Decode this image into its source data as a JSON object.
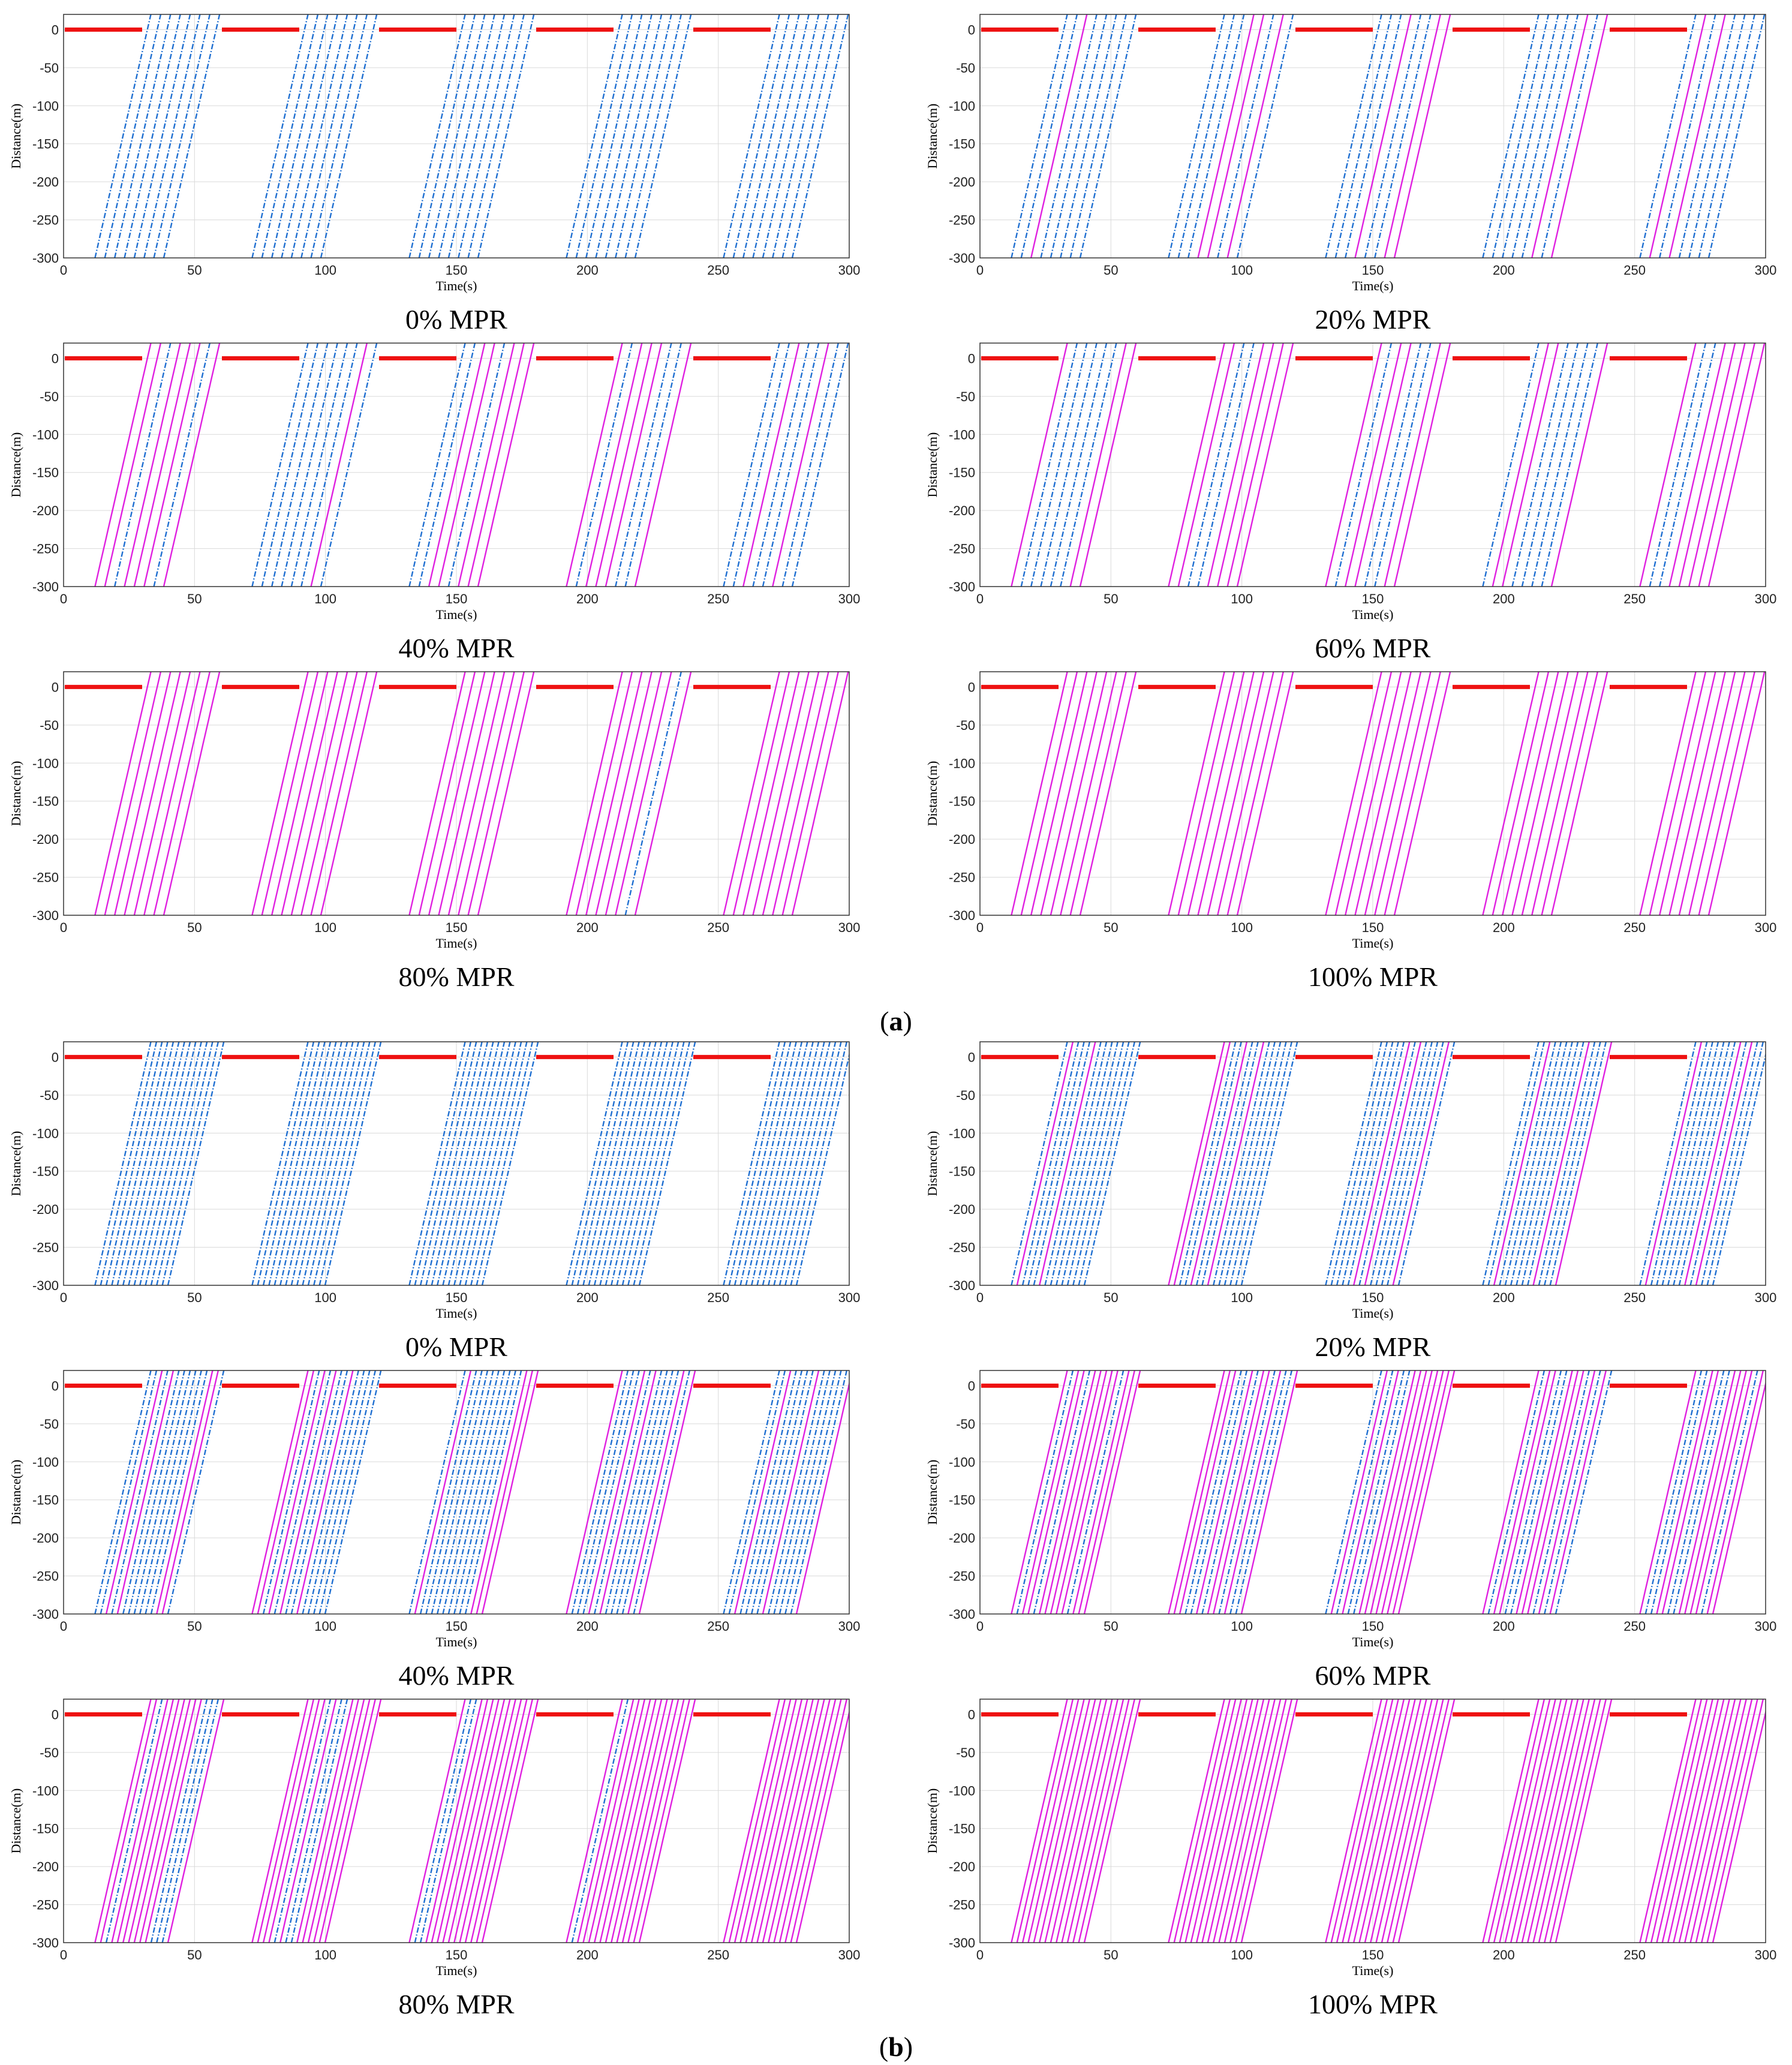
{
  "figure": {
    "groups": [
      {
        "label_open": "(",
        "label_letter": "a",
        "label_close": ")"
      },
      {
        "label_open": "(",
        "label_letter": "b",
        "label_close": ")"
      }
    ],
    "series_styles": {
      "signal_red": "#ee1111",
      "hdv_blue": "#1f6fd1",
      "cav_magenta": "#e020e0",
      "grid": "#d9d9d9"
    }
  },
  "chart_data": [
    {
      "group": "a",
      "type": "line",
      "title": "0% MPR",
      "xlabel": "Time(s)",
      "ylabel": "Distance(m)",
      "xlim": [
        0,
        300
      ],
      "ylim": [
        -300,
        20
      ],
      "xticks": [
        "0",
        "50",
        "100",
        "150",
        "200",
        "250",
        "300"
      ],
      "yticks": [
        "0",
        "-50",
        "-100",
        "-150",
        "-200",
        "-250",
        "-300"
      ],
      "red_phases": [
        [
          0,
          30
        ],
        [
          60,
          90
        ],
        [
          120,
          150
        ],
        [
          180,
          210
        ],
        [
          240,
          270
        ]
      ],
      "mpr": 0,
      "vehicles_per_cycle": 8
    },
    {
      "group": "a",
      "type": "line",
      "title": "20% MPR",
      "xlabel": "Time(s)",
      "ylabel": "Distance(m)",
      "xlim": [
        0,
        300
      ],
      "ylim": [
        -300,
        20
      ],
      "xticks": [
        "0",
        "50",
        "100",
        "150",
        "200",
        "250",
        "300"
      ],
      "yticks": [
        "0",
        "-50",
        "-100",
        "-150",
        "-200",
        "-250",
        "-300"
      ],
      "red_phases": [
        [
          0,
          30
        ],
        [
          60,
          90
        ],
        [
          120,
          150
        ],
        [
          180,
          210
        ],
        [
          240,
          270
        ]
      ],
      "mpr": 20,
      "vehicles_per_cycle": 8
    },
    {
      "group": "a",
      "type": "line",
      "title": "40% MPR",
      "xlabel": "Time(s)",
      "ylabel": "Distance(m)",
      "xlim": [
        0,
        300
      ],
      "ylim": [
        -300,
        20
      ],
      "xticks": [
        "0",
        "50",
        "100",
        "150",
        "200",
        "250",
        "300"
      ],
      "yticks": [
        "0",
        "-50",
        "-100",
        "-150",
        "-200",
        "-250",
        "-300"
      ],
      "red_phases": [
        [
          0,
          30
        ],
        [
          60,
          90
        ],
        [
          120,
          150
        ],
        [
          180,
          210
        ],
        [
          240,
          270
        ]
      ],
      "mpr": 40,
      "vehicles_per_cycle": 8
    },
    {
      "group": "a",
      "type": "line",
      "title": "60% MPR",
      "xlabel": "Time(s)",
      "ylabel": "Distance(m)",
      "xlim": [
        0,
        300
      ],
      "ylim": [
        -300,
        20
      ],
      "xticks": [
        "0",
        "50",
        "100",
        "150",
        "200",
        "250",
        "300"
      ],
      "yticks": [
        "0",
        "-50",
        "-100",
        "-150",
        "-200",
        "-250",
        "-300"
      ],
      "red_phases": [
        [
          0,
          30
        ],
        [
          60,
          90
        ],
        [
          120,
          150
        ],
        [
          180,
          210
        ],
        [
          240,
          270
        ]
      ],
      "mpr": 60,
      "vehicles_per_cycle": 8
    },
    {
      "group": "a",
      "type": "line",
      "title": "80% MPR",
      "xlabel": "Time(s)",
      "ylabel": "Distance(m)",
      "xlim": [
        0,
        300
      ],
      "ylim": [
        -300,
        20
      ],
      "xticks": [
        "0",
        "50",
        "100",
        "150",
        "200",
        "250",
        "300"
      ],
      "yticks": [
        "0",
        "-50",
        "-100",
        "-150",
        "-200",
        "-250",
        "-300"
      ],
      "red_phases": [
        [
          0,
          30
        ],
        [
          60,
          90
        ],
        [
          120,
          150
        ],
        [
          180,
          210
        ],
        [
          240,
          270
        ]
      ],
      "mpr": 80,
      "vehicles_per_cycle": 8
    },
    {
      "group": "a",
      "type": "line",
      "title": "100% MPR",
      "xlabel": "Time(s)",
      "ylabel": "Distance(m)",
      "xlim": [
        0,
        300
      ],
      "ylim": [
        -300,
        20
      ],
      "xticks": [
        "0",
        "50",
        "100",
        "150",
        "200",
        "250",
        "300"
      ],
      "yticks": [
        "0",
        "-50",
        "-100",
        "-150",
        "-200",
        "-250",
        "-300"
      ],
      "red_phases": [
        [
          0,
          30
        ],
        [
          60,
          90
        ],
        [
          120,
          150
        ],
        [
          180,
          210
        ],
        [
          240,
          270
        ]
      ],
      "mpr": 100,
      "vehicles_per_cycle": 8
    },
    {
      "group": "b",
      "type": "line",
      "title": "0% MPR",
      "xlabel": "Time(s)",
      "ylabel": "Distance(m)",
      "xlim": [
        0,
        300
      ],
      "ylim": [
        -300,
        20
      ],
      "xticks": [
        "0",
        "50",
        "100",
        "150",
        "200",
        "250",
        "300"
      ],
      "yticks": [
        "0",
        "-50",
        "-100",
        "-150",
        "-200",
        "-250",
        "-300"
      ],
      "red_phases": [
        [
          0,
          30
        ],
        [
          60,
          90
        ],
        [
          120,
          150
        ],
        [
          180,
          210
        ],
        [
          240,
          270
        ]
      ],
      "mpr": 0,
      "vehicles_per_cycle": 14
    },
    {
      "group": "b",
      "type": "line",
      "title": "20% MPR",
      "xlabel": "Time(s)",
      "ylabel": "Distance(m)",
      "xlim": [
        0,
        300
      ],
      "ylim": [
        -300,
        20
      ],
      "xticks": [
        "0",
        "50",
        "100",
        "150",
        "200",
        "250",
        "300"
      ],
      "yticks": [
        "0",
        "-50",
        "-100",
        "-150",
        "-200",
        "-250",
        "-300"
      ],
      "red_phases": [
        [
          0,
          30
        ],
        [
          60,
          90
        ],
        [
          120,
          150
        ],
        [
          180,
          210
        ],
        [
          240,
          270
        ]
      ],
      "mpr": 20,
      "vehicles_per_cycle": 14
    },
    {
      "group": "b",
      "type": "line",
      "title": "40% MPR",
      "xlabel": "Time(s)",
      "ylabel": "Distance(m)",
      "xlim": [
        0,
        300
      ],
      "ylim": [
        -300,
        20
      ],
      "xticks": [
        "0",
        "50",
        "100",
        "150",
        "200",
        "250",
        "300"
      ],
      "yticks": [
        "0",
        "-50",
        "-100",
        "-150",
        "-200",
        "-250",
        "-300"
      ],
      "red_phases": [
        [
          0,
          30
        ],
        [
          60,
          90
        ],
        [
          120,
          150
        ],
        [
          180,
          210
        ],
        [
          240,
          270
        ]
      ],
      "mpr": 40,
      "vehicles_per_cycle": 14
    },
    {
      "group": "b",
      "type": "line",
      "title": "60% MPR",
      "xlabel": "Time(s)",
      "ylabel": "Distance(m)",
      "xlim": [
        0,
        300
      ],
      "ylim": [
        -300,
        20
      ],
      "xticks": [
        "0",
        "50",
        "100",
        "150",
        "200",
        "250",
        "300"
      ],
      "yticks": [
        "0",
        "-50",
        "-100",
        "-150",
        "-200",
        "-250",
        "-300"
      ],
      "red_phases": [
        [
          0,
          30
        ],
        [
          60,
          90
        ],
        [
          120,
          150
        ],
        [
          180,
          210
        ],
        [
          240,
          270
        ]
      ],
      "mpr": 60,
      "vehicles_per_cycle": 14
    },
    {
      "group": "b",
      "type": "line",
      "title": "80% MPR",
      "xlabel": "Time(s)",
      "ylabel": "Distance(m)",
      "xlim": [
        0,
        300
      ],
      "ylim": [
        -300,
        20
      ],
      "xticks": [
        "0",
        "50",
        "100",
        "150",
        "200",
        "250",
        "300"
      ],
      "yticks": [
        "0",
        "-50",
        "-100",
        "-150",
        "-200",
        "-250",
        "-300"
      ],
      "red_phases": [
        [
          0,
          30
        ],
        [
          60,
          90
        ],
        [
          120,
          150
        ],
        [
          180,
          210
        ],
        [
          240,
          270
        ]
      ],
      "mpr": 80,
      "vehicles_per_cycle": 14
    },
    {
      "group": "b",
      "type": "line",
      "title": "100% MPR",
      "xlabel": "Time(s)",
      "ylabel": "Distance(m)",
      "xlim": [
        0,
        300
      ],
      "ylim": [
        -300,
        20
      ],
      "xticks": [
        "0",
        "50",
        "100",
        "150",
        "200",
        "250",
        "300"
      ],
      "yticks": [
        "0",
        "-50",
        "-100",
        "-150",
        "-200",
        "-250",
        "-300"
      ],
      "red_phases": [
        [
          0,
          30
        ],
        [
          60,
          90
        ],
        [
          120,
          150
        ],
        [
          180,
          210
        ],
        [
          240,
          270
        ]
      ],
      "mpr": 100,
      "vehicles_per_cycle": 14
    }
  ]
}
